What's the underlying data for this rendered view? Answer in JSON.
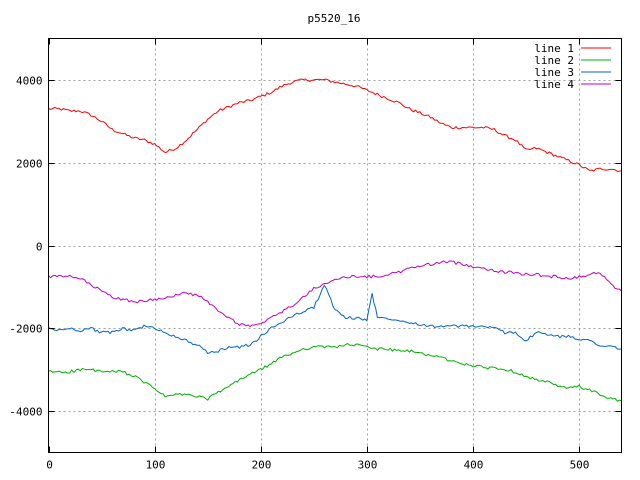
{
  "chart_data": {
    "type": "line",
    "title": "p5520_16",
    "xlabel": "",
    "ylabel": "",
    "xlim": [
      0,
      540
    ],
    "ylim": [
      -5000,
      5000
    ],
    "xticks": [
      0,
      100,
      200,
      300,
      400,
      500
    ],
    "yticks": [
      -4000,
      -2000,
      0,
      2000,
      4000
    ],
    "grid": true,
    "legend_position": "top-right",
    "series": [
      {
        "name": "line 1",
        "color": "#ff0000",
        "x": [
          0,
          10,
          20,
          30,
          40,
          50,
          60,
          70,
          80,
          90,
          100,
          110,
          120,
          130,
          140,
          150,
          160,
          170,
          180,
          190,
          200,
          210,
          220,
          230,
          240,
          250,
          260,
          270,
          280,
          290,
          300,
          310,
          320,
          330,
          340,
          350,
          360,
          370,
          380,
          390,
          400,
          410,
          420,
          430,
          440,
          450,
          460,
          470,
          480,
          490,
          500,
          510,
          520,
          530,
          540
        ],
        "y": [
          3300,
          3300,
          3250,
          3250,
          3150,
          3000,
          2800,
          2700,
          2600,
          2550,
          2450,
          2250,
          2350,
          2550,
          2800,
          3050,
          3250,
          3350,
          3450,
          3500,
          3600,
          3700,
          3850,
          3950,
          4000,
          4000,
          4000,
          3950,
          3900,
          3850,
          3750,
          3650,
          3550,
          3450,
          3300,
          3200,
          3100,
          2950,
          2850,
          2850,
          2850,
          2850,
          2800,
          2650,
          2550,
          2300,
          2350,
          2250,
          2150,
          2050,
          1950,
          1800,
          1850,
          1850,
          1800
        ]
      },
      {
        "name": "line 2",
        "color": "#00b000",
        "x": [
          0,
          10,
          20,
          30,
          40,
          50,
          60,
          70,
          80,
          90,
          100,
          110,
          120,
          130,
          140,
          150,
          160,
          170,
          180,
          190,
          200,
          210,
          220,
          230,
          240,
          250,
          260,
          270,
          280,
          290,
          300,
          310,
          320,
          330,
          340,
          350,
          360,
          370,
          380,
          390,
          400,
          410,
          420,
          430,
          440,
          450,
          460,
          470,
          480,
          490,
          500,
          510,
          520,
          530,
          540
        ],
        "y": [
          -3050,
          -3050,
          -3050,
          -3000,
          -3000,
          -3050,
          -3050,
          -3050,
          -3150,
          -3300,
          -3450,
          -3650,
          -3600,
          -3600,
          -3650,
          -3700,
          -3550,
          -3400,
          -3250,
          -3100,
          -3000,
          -2850,
          -2700,
          -2600,
          -2500,
          -2450,
          -2450,
          -2450,
          -2400,
          -2400,
          -2450,
          -2500,
          -2500,
          -2550,
          -2550,
          -2600,
          -2650,
          -2700,
          -2800,
          -2850,
          -2900,
          -2950,
          -2950,
          -3000,
          -3050,
          -3150,
          -3250,
          -3300,
          -3400,
          -3450,
          -3400,
          -3500,
          -3600,
          -3700,
          -3750
        ]
      },
      {
        "name": "line 3",
        "color": "#0064d2",
        "x": [
          0,
          10,
          20,
          30,
          40,
          50,
          60,
          70,
          80,
          90,
          100,
          110,
          120,
          130,
          140,
          150,
          160,
          170,
          180,
          190,
          200,
          210,
          220,
          230,
          240,
          250,
          260,
          270,
          280,
          290,
          300,
          305,
          310,
          320,
          330,
          340,
          350,
          360,
          370,
          380,
          390,
          400,
          410,
          420,
          430,
          440,
          450,
          460,
          470,
          480,
          490,
          500,
          510,
          520,
          530,
          540
        ],
        "y": [
          -2000,
          -2050,
          -2000,
          -2050,
          -2000,
          -2100,
          -2100,
          -2000,
          -2050,
          -1950,
          -2000,
          -2100,
          -2200,
          -2300,
          -2400,
          -2600,
          -2550,
          -2450,
          -2450,
          -2400,
          -2200,
          -2000,
          -1850,
          -1700,
          -1600,
          -1500,
          -950,
          -1550,
          -1750,
          -1750,
          -1800,
          -1150,
          -1750,
          -1750,
          -1800,
          -1850,
          -1900,
          -1950,
          -1950,
          -1950,
          -1950,
          -1950,
          -1950,
          -2000,
          -2100,
          -2100,
          -2300,
          -2100,
          -2150,
          -2200,
          -2200,
          -2250,
          -2300,
          -2400,
          -2450,
          -2500
        ]
      },
      {
        "name": "line 4",
        "color": "#c000c0",
        "x": [
          0,
          10,
          20,
          30,
          40,
          50,
          60,
          70,
          80,
          90,
          100,
          110,
          120,
          130,
          140,
          150,
          160,
          170,
          180,
          190,
          200,
          210,
          220,
          230,
          240,
          250,
          260,
          270,
          280,
          290,
          300,
          310,
          320,
          330,
          340,
          350,
          360,
          370,
          380,
          390,
          400,
          410,
          420,
          430,
          440,
          450,
          460,
          470,
          480,
          490,
          500,
          510,
          520,
          530,
          540
        ],
        "y": [
          -750,
          -750,
          -750,
          -800,
          -950,
          -1100,
          -1250,
          -1300,
          -1350,
          -1350,
          -1300,
          -1250,
          -1200,
          -1150,
          -1200,
          -1350,
          -1600,
          -1750,
          -1900,
          -1950,
          -1900,
          -1750,
          -1600,
          -1450,
          -1250,
          -1050,
          -900,
          -850,
          -750,
          -750,
          -750,
          -750,
          -700,
          -650,
          -550,
          -500,
          -450,
          -400,
          -400,
          -450,
          -500,
          -550,
          -600,
          -650,
          -650,
          -700,
          -700,
          -750,
          -750,
          -800,
          -750,
          -700,
          -650,
          -950,
          -1100
        ]
      }
    ]
  }
}
